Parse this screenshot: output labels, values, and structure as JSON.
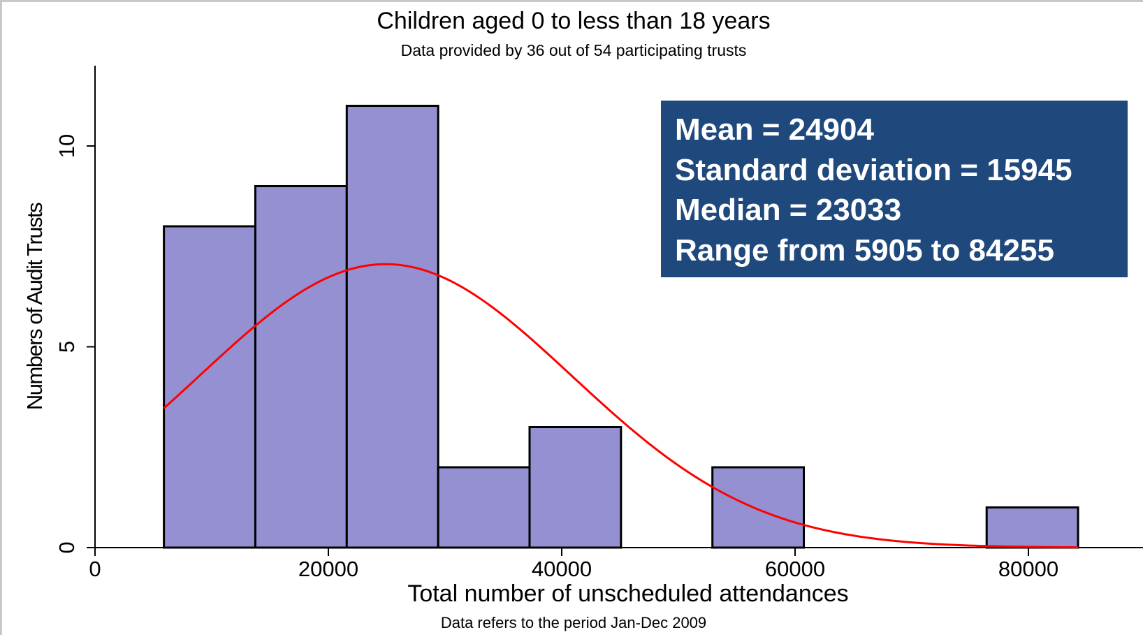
{
  "chart_data": {
    "type": "bar",
    "title": "Children aged 0 to less than 18 years",
    "subtitle": "Data provided by 36 out of 54 participating trusts",
    "xlabel": "Total number of unscheduled attendances",
    "ylabel": "Numbers of Audit Trusts",
    "footnote": "Data refers to the period Jan-Dec 2009",
    "xlim": [
      0,
      90000
    ],
    "ylim": [
      0,
      12
    ],
    "x_ticks": [
      "0",
      "20000",
      "40000",
      "60000",
      "80000"
    ],
    "x_tick_values": [
      0,
      20000,
      40000,
      60000,
      80000
    ],
    "y_ticks": [
      "0",
      "5",
      "10"
    ],
    "y_tick_values": [
      0,
      5,
      10
    ],
    "bin_edges": [
      5905,
      13740,
      21575,
      29410,
      37245,
      45080,
      52915,
      60750,
      68585,
      76420,
      84255
    ],
    "values": [
      8,
      9,
      11,
      2,
      3,
      0,
      2,
      0,
      0,
      1
    ],
    "normal_curve": {
      "mean": 24904,
      "sd": 15945,
      "n": 36,
      "color": "#ff0000"
    },
    "bar_color": "#9490d2",
    "stats": [
      "Mean = 24904",
      "Standard deviation = 15945",
      "Median = 23033",
      "Range from 5905 to 84255"
    ],
    "stats_box_color": "#1f497d"
  }
}
